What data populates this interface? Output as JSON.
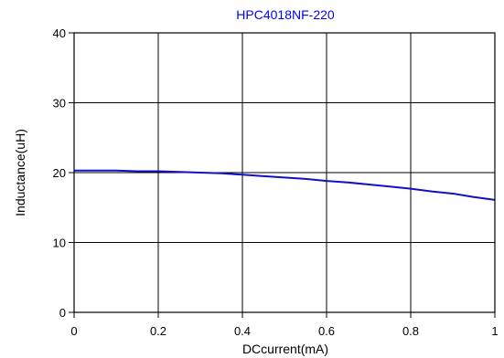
{
  "chart_data": {
    "type": "line",
    "title": "HPC4018NF-220",
    "xlabel": "DCcurrent(mA)",
    "ylabel": "Inductance(uH)",
    "xlim": [
      0,
      1
    ],
    "ylim": [
      0,
      40
    ],
    "x_ticks": [
      "0",
      "0.2",
      "0.4",
      "0.6",
      "0.8",
      "1"
    ],
    "y_ticks": [
      "0",
      "10",
      "20",
      "30",
      "40"
    ],
    "grid": true,
    "series": [
      {
        "x": [
          0,
          0.05,
          0.1,
          0.15,
          0.2,
          0.25,
          0.3,
          0.35,
          0.4,
          0.45,
          0.5,
          0.55,
          0.6,
          0.65,
          0.7,
          0.75,
          0.8,
          0.85,
          0.9,
          0.95,
          1.0
        ],
        "values": [
          20.3,
          20.3,
          20.3,
          20.2,
          20.2,
          20.1,
          20.0,
          19.9,
          19.7,
          19.5,
          19.3,
          19.1,
          18.8,
          18.6,
          18.3,
          18.0,
          17.7,
          17.3,
          17.0,
          16.5,
          16.1
        ]
      }
    ]
  },
  "colors": {
    "title": "#0000ff",
    "series": "#1010c8",
    "grid": "#000000",
    "background": "#ffffff"
  }
}
